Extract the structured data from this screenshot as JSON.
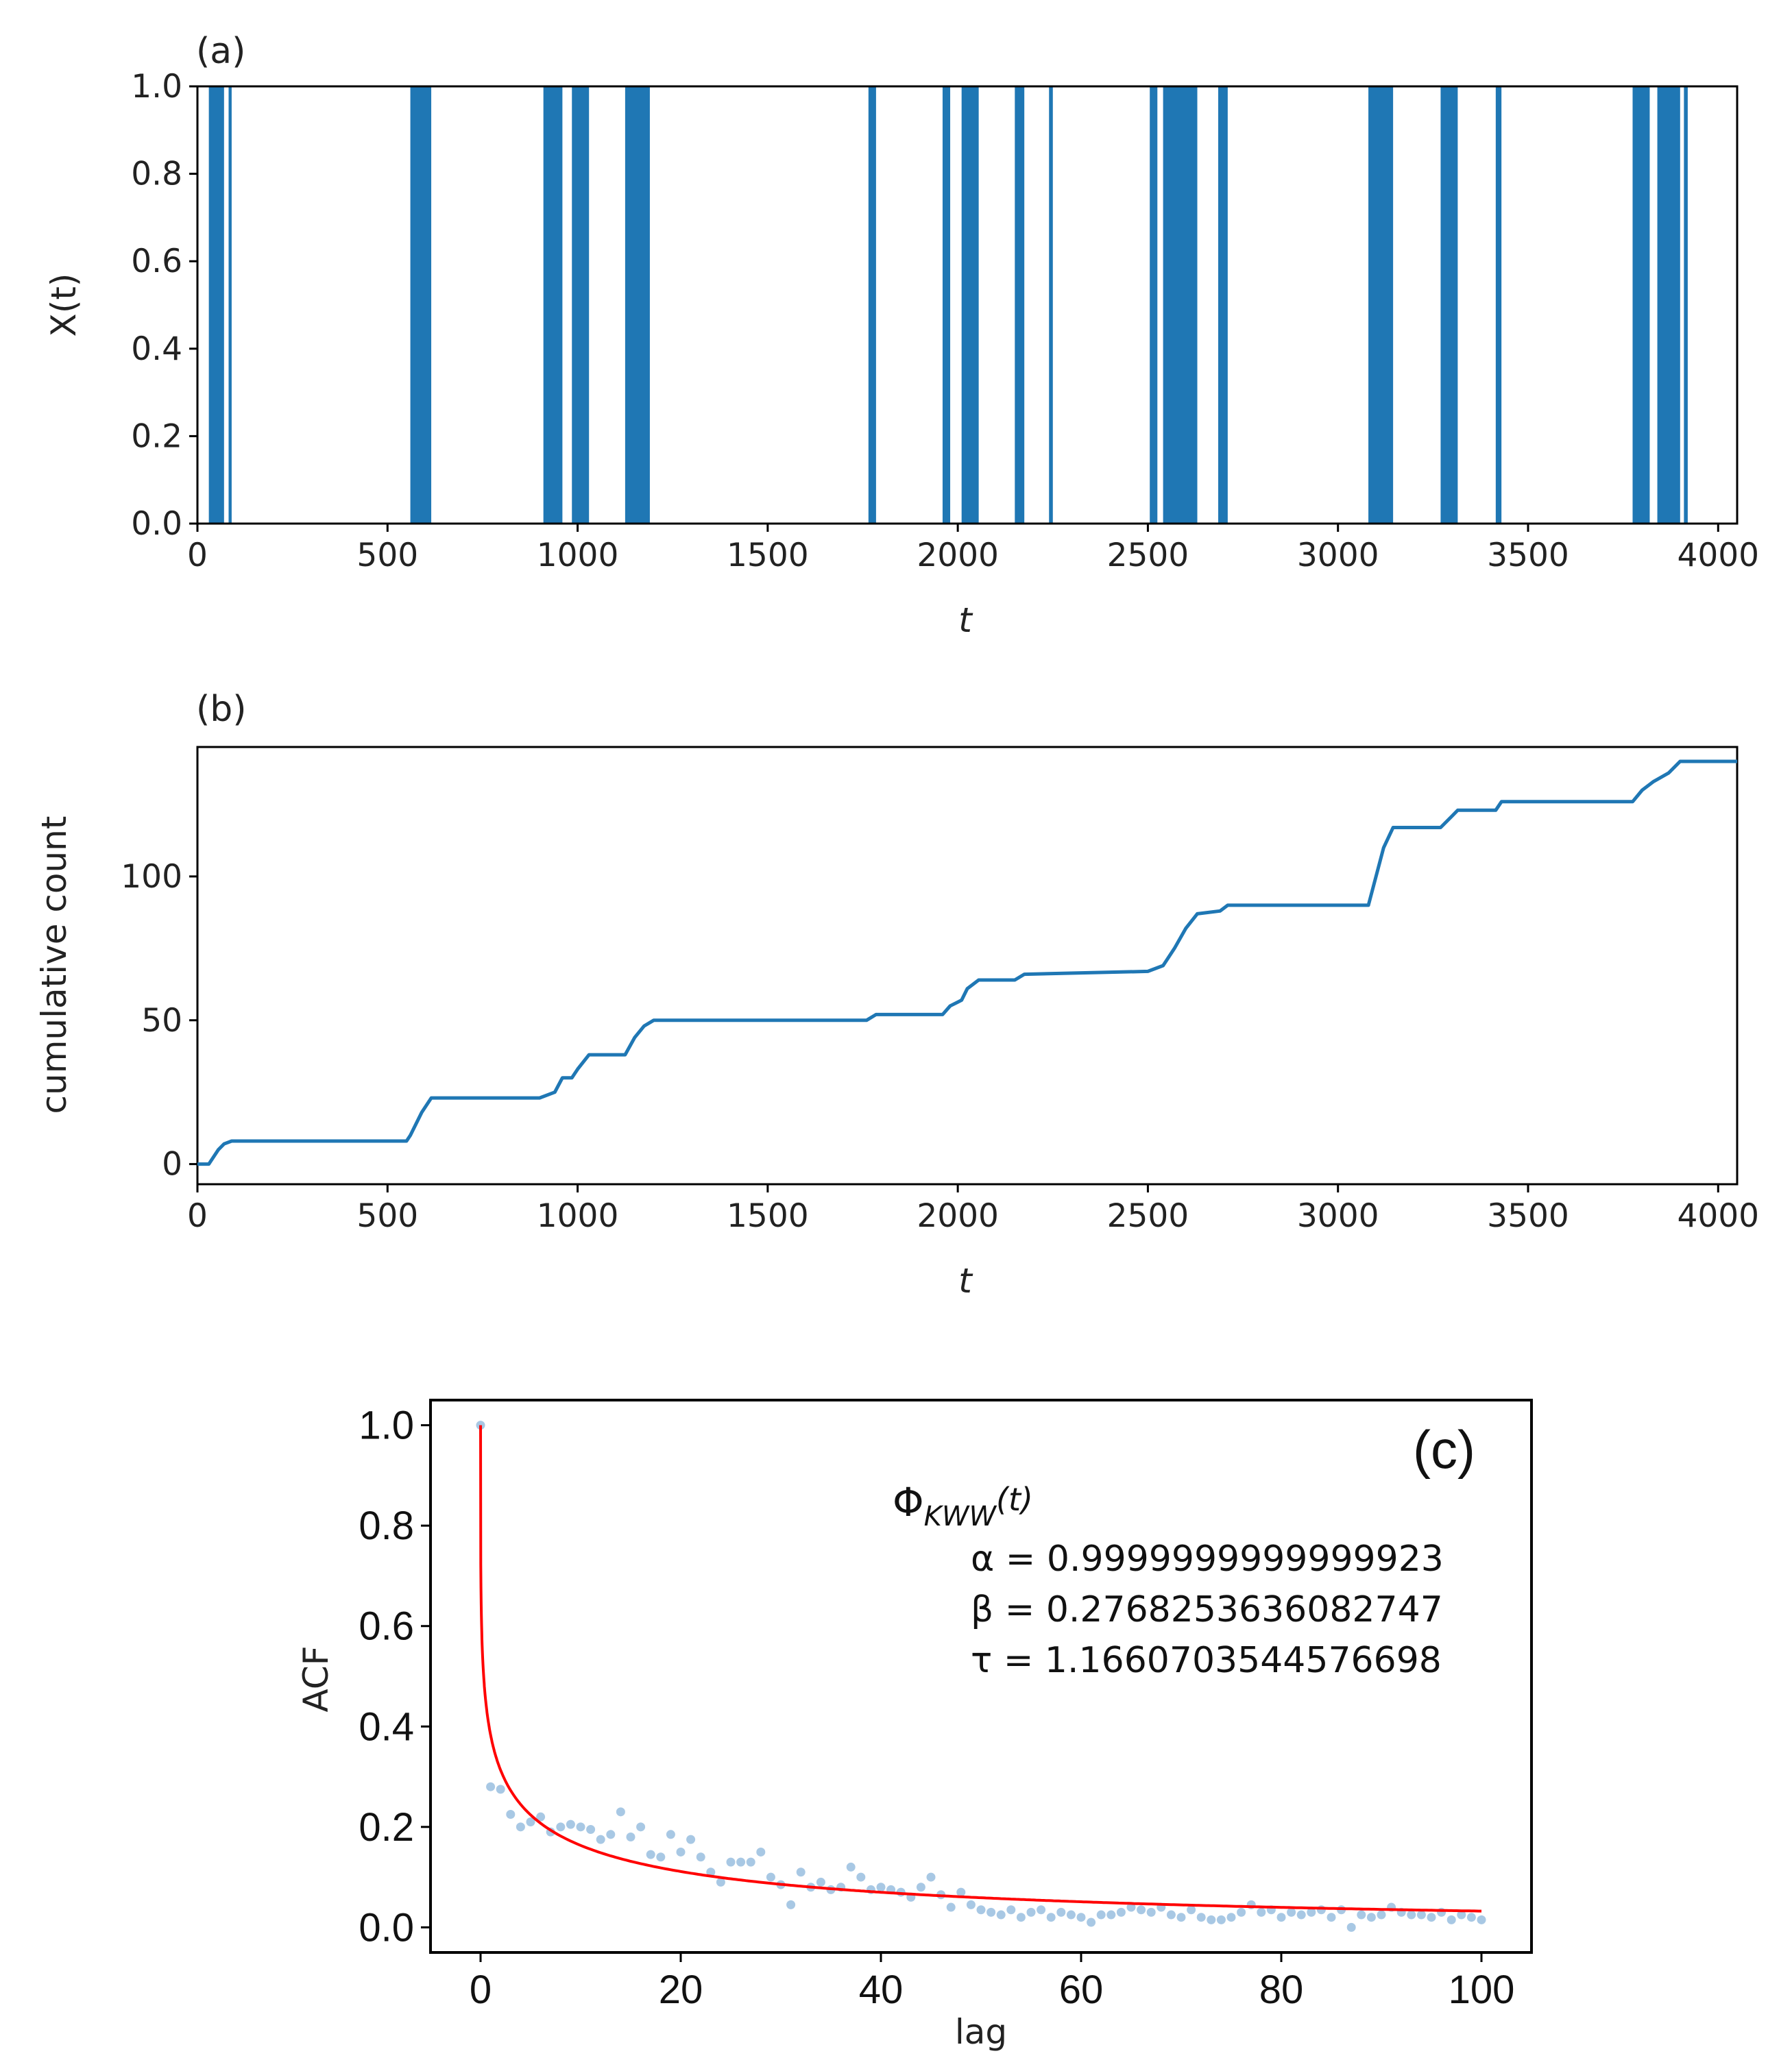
{
  "chart_data": [
    {
      "panel_label": "(a)",
      "type": "bar",
      "description_type": "binary event series",
      "xlabel": "t",
      "ylabel": "X(t)",
      "xlim": [
        0,
        4050
      ],
      "ylim": [
        0,
        1
      ],
      "xticks": [
        "0",
        "500",
        "1000",
        "1500",
        "2000",
        "2500",
        "3000",
        "3500",
        "4000"
      ],
      "yticks": [
        "0.0",
        "0.2",
        "0.4",
        "0.6",
        "0.8",
        "1.0"
      ],
      "color": "#1f77b4",
      "event_intervals": [
        [
          30,
          70
        ],
        [
          82,
          90
        ],
        [
          560,
          615
        ],
        [
          910,
          960
        ],
        [
          985,
          1030
        ],
        [
          1125,
          1190
        ],
        [
          1765,
          1785
        ],
        [
          1960,
          1980
        ],
        [
          2010,
          2055
        ],
        [
          2150,
          2175
        ],
        [
          2240,
          2250
        ],
        [
          2505,
          2525
        ],
        [
          2540,
          2630
        ],
        [
          2685,
          2710
        ],
        [
          3080,
          3145
        ],
        [
          3270,
          3315
        ],
        [
          3415,
          3430
        ],
        [
          3775,
          3820
        ],
        [
          3840,
          3900
        ],
        [
          3910,
          3920
        ]
      ]
    },
    {
      "panel_label": "(b)",
      "type": "line",
      "xlabel": "t",
      "ylabel": "cumulative count",
      "xlim": [
        0,
        4050
      ],
      "ylim": [
        -7,
        145
      ],
      "xticks": [
        "0",
        "500",
        "1000",
        "1500",
        "2000",
        "2500",
        "3000",
        "3500",
        "4000"
      ],
      "yticks": [
        "0",
        "50",
        "100"
      ],
      "color": "#1f77b4",
      "x": [
        0,
        30,
        55,
        70,
        90,
        550,
        560,
        590,
        615,
        900,
        940,
        960,
        985,
        1000,
        1030,
        1125,
        1150,
        1175,
        1200,
        1760,
        1785,
        1960,
        1980,
        2010,
        2025,
        2055,
        2150,
        2175,
        2500,
        2540,
        2570,
        2600,
        2630,
        2690,
        2710,
        3080,
        3100,
        3120,
        3145,
        3270,
        3300,
        3315,
        3415,
        3430,
        3775,
        3800,
        3830,
        3870,
        3900,
        4050
      ],
      "y": [
        0,
        0,
        5,
        7,
        8,
        8,
        10,
        18,
        23,
        23,
        25,
        30,
        30,
        33,
        38,
        38,
        44,
        48,
        50,
        50,
        52,
        52,
        55,
        57,
        61,
        64,
        64,
        66,
        67,
        69,
        75,
        82,
        87,
        88,
        90,
        90,
        100,
        110,
        117,
        117,
        121,
        123,
        123,
        126,
        126,
        130,
        133,
        136,
        140,
        140
      ]
    },
    {
      "panel_label": "(c)",
      "type": "scatter",
      "xlabel": "lag",
      "ylabel": "ACF",
      "xlim": [
        -5,
        105
      ],
      "ylim": [
        -0.05,
        1.05
      ],
      "xticks": [
        "0",
        "20",
        "40",
        "60",
        "80",
        "100"
      ],
      "yticks": [
        "0.0",
        "0.2",
        "0.4",
        "0.6",
        "0.8",
        "1.0"
      ],
      "point_color": "#a8c8e4",
      "fit_color": "#ff0000",
      "x": [
        0,
        1,
        2,
        3,
        4,
        5,
        6,
        7,
        8,
        9,
        10,
        11,
        12,
        13,
        14,
        15,
        16,
        17,
        18,
        19,
        20,
        21,
        22,
        23,
        24,
        25,
        26,
        27,
        28,
        29,
        30,
        31,
        32,
        33,
        34,
        35,
        36,
        37,
        38,
        39,
        40,
        41,
        42,
        43,
        44,
        45,
        46,
        47,
        48,
        49,
        50,
        51,
        52,
        53,
        54,
        55,
        56,
        57,
        58,
        59,
        60,
        61,
        62,
        63,
        64,
        65,
        66,
        67,
        68,
        69,
        70,
        71,
        72,
        73,
        74,
        75,
        76,
        77,
        78,
        79,
        80,
        81,
        82,
        83,
        84,
        85,
        86,
        87,
        88,
        89,
        90,
        91,
        92,
        93,
        94,
        95,
        96,
        97,
        98,
        99,
        100
      ],
      "values": [
        1.0,
        0.28,
        0.275,
        0.225,
        0.2,
        0.21,
        0.22,
        0.19,
        0.2,
        0.205,
        0.2,
        0.195,
        0.175,
        0.185,
        0.23,
        0.18,
        0.2,
        0.145,
        0.14,
        0.185,
        0.15,
        0.175,
        0.14,
        0.11,
        0.09,
        0.13,
        0.13,
        0.13,
        0.15,
        0.1,
        0.085,
        0.045,
        0.11,
        0.08,
        0.09,
        0.075,
        0.08,
        0.12,
        0.1,
        0.075,
        0.08,
        0.075,
        0.07,
        0.06,
        0.08,
        0.1,
        0.065,
        0.04,
        0.07,
        0.045,
        0.035,
        0.03,
        0.025,
        0.035,
        0.02,
        0.03,
        0.035,
        0.02,
        0.03,
        0.025,
        0.02,
        0.01,
        0.025,
        0.025,
        0.03,
        0.04,
        0.035,
        0.03,
        0.04,
        0.025,
        0.02,
        0.035,
        0.02,
        0.015,
        0.015,
        0.02,
        0.03,
        0.045,
        0.03,
        0.035,
        0.02,
        0.03,
        0.025,
        0.03,
        0.035,
        0.02,
        0.035,
        0.0,
        0.025,
        0.02,
        0.025,
        0.04,
        0.03,
        0.025,
        0.025,
        0.02,
        0.03,
        0.015,
        0.025,
        0.02,
        0.015
      ],
      "fit": {
        "label": "ΦKWW(t)",
        "symbol": "Φ",
        "subscript": "KWW",
        "argument": "(t)",
        "alpha_text": "α = 0.9999999999999923",
        "beta_text": "β = 0.2768253636082747",
        "tau_text": "τ = 1.1660703544576698",
        "alpha": 0.9999999999999923,
        "beta": 0.2768253636082747,
        "tau": 1.1660703544576698
      }
    }
  ]
}
